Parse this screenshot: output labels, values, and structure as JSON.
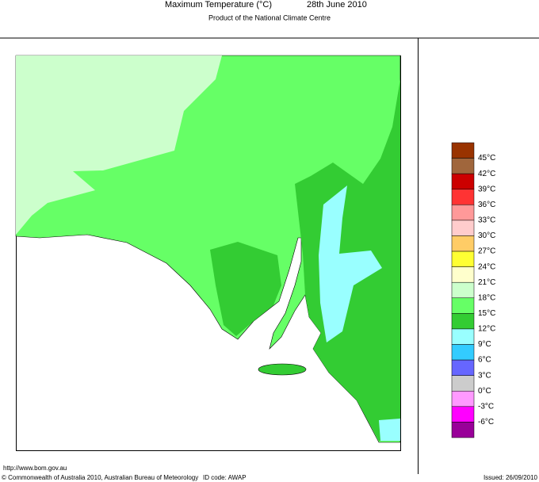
{
  "header": {
    "title": "Maximum Temperature (°C)",
    "date": "28th June 2010",
    "subtitle": "Product of the National Climate Centre"
  },
  "legend": {
    "labels": [
      "45°C",
      "42°C",
      "39°C",
      "36°C",
      "33°C",
      "30°C",
      "27°C",
      "24°C",
      "21°C",
      "18°C",
      "15°C",
      "12°C",
      "9°C",
      "6°C",
      "3°C",
      "0°C",
      "-3°C",
      "-6°C"
    ],
    "colors": [
      "#993300",
      "#a0663c",
      "#cc0000",
      "#ff3333",
      "#ff9999",
      "#ffcccc",
      "#ffcc66",
      "#ffff33",
      "#ffffcc",
      "#ccffcc",
      "#66ff66",
      "#33cc33",
      "#99ffff",
      "#33ccff",
      "#6666ff",
      "#cccccc",
      "#ff99ff",
      "#ff00ff",
      "#990099"
    ]
  },
  "footer": {
    "url": "http://www.bom.gov.au",
    "copyright": "© Commonwealth of Australia 2010, Australian Bureau of Meteorology",
    "id_code": "ID code: AWAP",
    "issued": "Issued: 26/09/2010"
  }
}
